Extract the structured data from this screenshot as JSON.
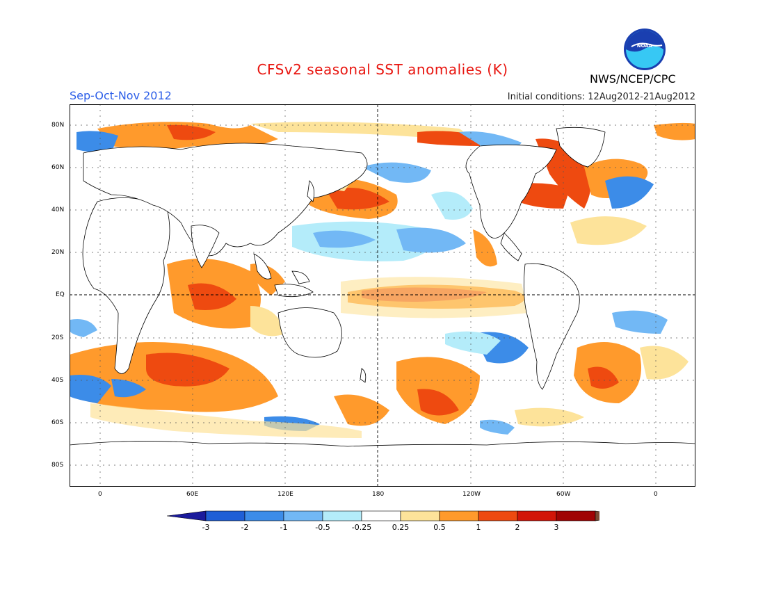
{
  "title": "CFSv2 seasonal SST anomalies (K)",
  "season": "Sep-Oct-Nov 2012",
  "initial_conditions": "Initial conditions: 12Aug2012-21Aug2012",
  "organization": "NWS/NCEP/CPC",
  "logo": {
    "text": "NOAA",
    "icon": "noaa-logo-icon"
  },
  "map": {
    "lat_labels": [
      "80N",
      "60N",
      "40N",
      "20N",
      "EQ",
      "20S",
      "40S",
      "60S",
      "80S"
    ],
    "lon_labels": [
      "0",
      "60E",
      "120E",
      "180",
      "120W",
      "60W",
      "0"
    ]
  },
  "colorbar": {
    "labels": [
      "-3",
      "-2",
      "-1",
      "-0.5",
      "-0.25",
      "0.25",
      "0.5",
      "1",
      "2",
      "3"
    ],
    "colors": [
      "#1a1a9c",
      "#1f5fd6",
      "#3c8ce8",
      "#72b8f5",
      "#b4ecfa",
      "#ffffff",
      "#fde39a",
      "#ff9a2c",
      "#ee4a10",
      "#d21508",
      "#a00404",
      "#7a4a32"
    ]
  }
}
